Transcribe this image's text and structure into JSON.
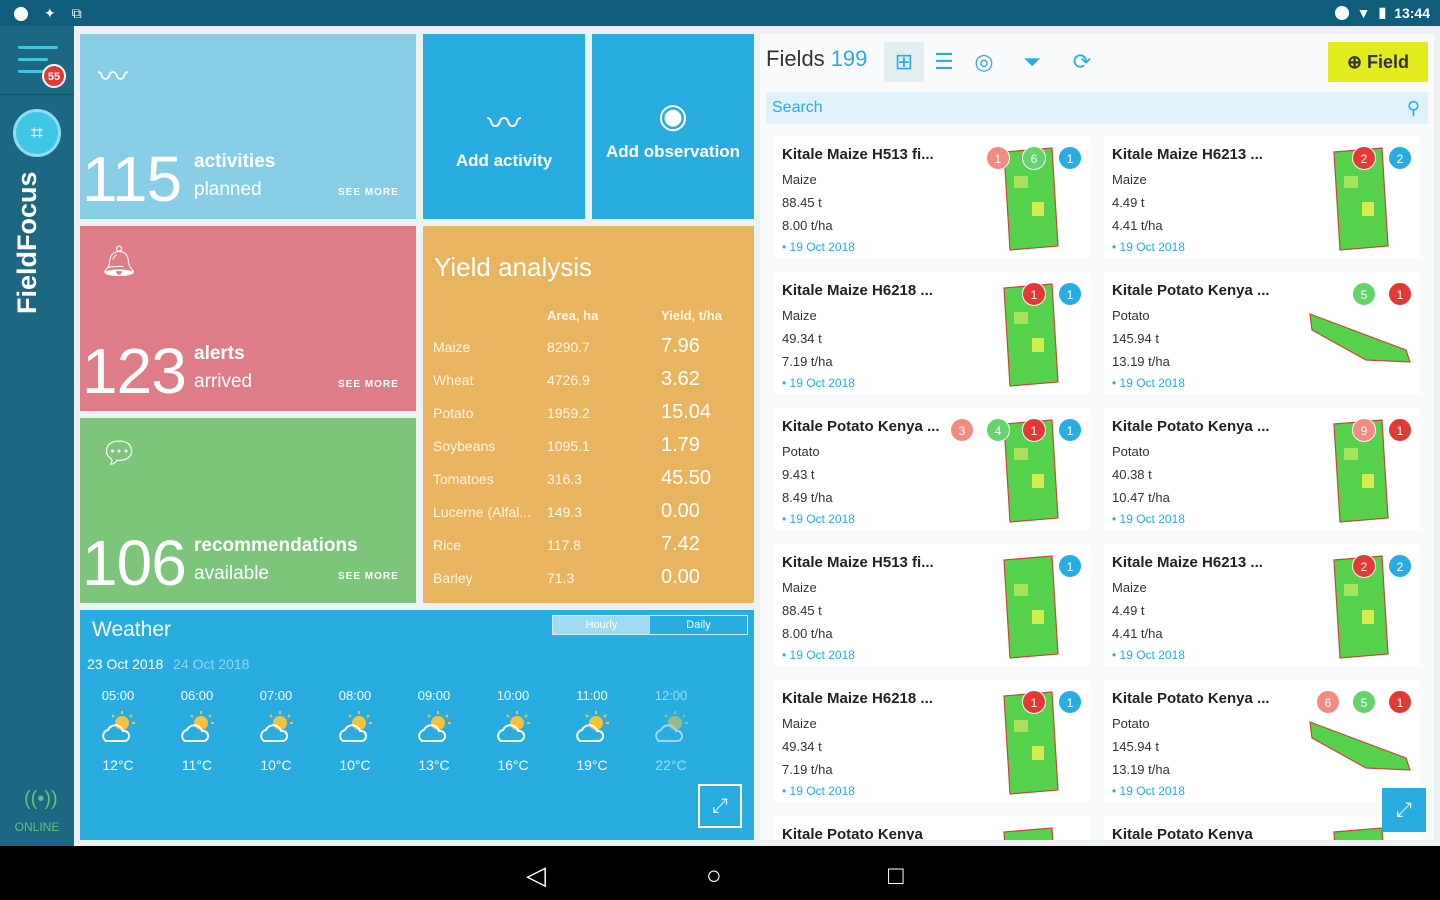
{
  "status": {
    "time": "13:44"
  },
  "rail": {
    "badge": "55",
    "brand": "FieldFocus",
    "online": "ONLINE"
  },
  "tiles": {
    "activities": {
      "count": "115",
      "line1": "activities",
      "line2": "planned",
      "see_more": "SEE MORE"
    },
    "alerts": {
      "count": "123",
      "line1": "alerts",
      "line2": "arrived",
      "see_more": "SEE MORE"
    },
    "recommendations": {
      "count": "106",
      "line1": "recommendations",
      "line2": "available",
      "see_more": "SEE MORE"
    }
  },
  "quick": {
    "add_activity": "Add activity",
    "add_observation": "Add observation"
  },
  "yield": {
    "title": "Yield analysis",
    "col_area": "Area, ha",
    "col_yield": "Yield, t/ha",
    "rows": [
      {
        "crop": "Maize",
        "area": "8290.7",
        "yield": "7.96"
      },
      {
        "crop": "Wheat",
        "area": "4726.9",
        "yield": "3.62"
      },
      {
        "crop": "Potato",
        "area": "1959.2",
        "yield": "15.04"
      },
      {
        "crop": "Soybeans",
        "area": "1095.1",
        "yield": "1.79"
      },
      {
        "crop": "Tomatoes",
        "area": "316.3",
        "yield": "45.50"
      },
      {
        "crop": "Lucerne (Alfal...",
        "area": "149.3",
        "yield": "0.00"
      },
      {
        "crop": "Rice",
        "area": "117.8",
        "yield": "7.42"
      },
      {
        "crop": "Barley",
        "area": "71.3",
        "yield": "0.00"
      }
    ]
  },
  "weather": {
    "title": "Weather",
    "seg_hourly": "Hourly",
    "seg_daily": "Daily",
    "date_active": "23 Oct 2018",
    "date_next": "24 Oct 2018",
    "hours": [
      {
        "time": "05:00",
        "temp": "12°C"
      },
      {
        "time": "06:00",
        "temp": "11°C"
      },
      {
        "time": "07:00",
        "temp": "10°C"
      },
      {
        "time": "08:00",
        "temp": "10°C"
      },
      {
        "time": "09:00",
        "temp": "13°C"
      },
      {
        "time": "10:00",
        "temp": "16°C"
      },
      {
        "time": "11:00",
        "temp": "19°C"
      },
      {
        "time": "12:00",
        "temp": "22°C"
      }
    ]
  },
  "fields": {
    "title": "Fields",
    "count": "199",
    "add_field": "Field",
    "search_placeholder": "Search",
    "cards": [
      {
        "name": "Kitale Maize H513 fi...",
        "crop": "Maize",
        "amount": "88.45 t",
        "rate": "8.00 t/ha",
        "date": "• 19 Oct 2018",
        "badges": [
          {
            "n": "1",
            "c": "#f28b82"
          },
          {
            "n": "6",
            "c": "#66d36e"
          },
          {
            "n": "1",
            "c": "#29ace0"
          }
        ]
      },
      {
        "name": "Kitale Maize H6213 ...",
        "crop": "Maize",
        "amount": "4.49 t",
        "rate": "4.41 t/ha",
        "date": "• 19 Oct 2018",
        "badges": [
          {
            "n": "2",
            "c": "#e53935"
          },
          {
            "n": "2",
            "c": "#29ace0"
          }
        ]
      },
      {
        "name": "Kitale Maize H6218 ...",
        "crop": "Maize",
        "amount": "49.34 t",
        "rate": "7.19 t/ha",
        "date": "• 19 Oct 2018",
        "badges": [
          {
            "n": "1",
            "c": "#e53935"
          },
          {
            "n": "1",
            "c": "#29ace0"
          }
        ]
      },
      {
        "name": "Kitale Potato Kenya ...",
        "crop": "Potato",
        "amount": "145.94 t",
        "rate": "13.19 t/ha",
        "date": "• 19 Oct 2018",
        "badges": [
          {
            "n": "5",
            "c": "#66d36e"
          },
          {
            "n": "1",
            "c": "#e53935"
          }
        ]
      },
      {
        "name": "Kitale Potato Kenya ...",
        "crop": "Potato",
        "amount": "9.43 t",
        "rate": "8.49 t/ha",
        "date": "• 19 Oct 2018",
        "badges": [
          {
            "n": "3",
            "c": "#f28b82"
          },
          {
            "n": "4",
            "c": "#66d36e"
          },
          {
            "n": "1",
            "c": "#e53935"
          },
          {
            "n": "1",
            "c": "#29ace0"
          }
        ]
      },
      {
        "name": "Kitale Potato Kenya ...",
        "crop": "Potato",
        "amount": "40.38 t",
        "rate": "10.47 t/ha",
        "date": "• 19 Oct 2018",
        "badges": [
          {
            "n": "9",
            "c": "#f28b82"
          },
          {
            "n": "1",
            "c": "#e53935"
          }
        ]
      },
      {
        "name": "Kitale Maize H513 fi...",
        "crop": "Maize",
        "amount": "88.45 t",
        "rate": "8.00 t/ha",
        "date": "• 19 Oct 2018",
        "badges": [
          {
            "n": "1",
            "c": "#29ace0"
          }
        ]
      },
      {
        "name": "Kitale Maize H6213 ...",
        "crop": "Maize",
        "amount": "4.49 t",
        "rate": "4.41 t/ha",
        "date": "• 19 Oct 2018",
        "badges": [
          {
            "n": "2",
            "c": "#e53935"
          },
          {
            "n": "2",
            "c": "#29ace0"
          }
        ]
      },
      {
        "name": "Kitale Maize H6218 ...",
        "crop": "Maize",
        "amount": "49.34 t",
        "rate": "7.19 t/ha",
        "date": "• 19 Oct 2018",
        "badges": [
          {
            "n": "1",
            "c": "#e53935"
          },
          {
            "n": "1",
            "c": "#29ace0"
          }
        ]
      },
      {
        "name": "Kitale Potato Kenya ...",
        "crop": "Potato",
        "amount": "145.94 t",
        "rate": "13.19 t/ha",
        "date": "• 19 Oct 2018",
        "badges": [
          {
            "n": "6",
            "c": "#f28b82"
          },
          {
            "n": "5",
            "c": "#66d36e"
          },
          {
            "n": "1",
            "c": "#e53935"
          }
        ]
      },
      {
        "name": "Kitale Potato Kenya",
        "crop": "",
        "amount": "",
        "rate": "",
        "date": "",
        "badges": []
      },
      {
        "name": "Kitale Potato Kenya",
        "crop": "",
        "amount": "",
        "rate": "",
        "date": "",
        "badges": []
      }
    ]
  },
  "icons": {
    "menu": "hamburger-icon",
    "logo": "farm-logo-icon",
    "online": "signal-icon",
    "grid": "grid-view-icon",
    "list": "list-view-icon",
    "globe": "globe-icon",
    "filter": "filter-icon",
    "refresh": "refresh-icon",
    "search": "search-icon",
    "expand": "expand-icon"
  }
}
